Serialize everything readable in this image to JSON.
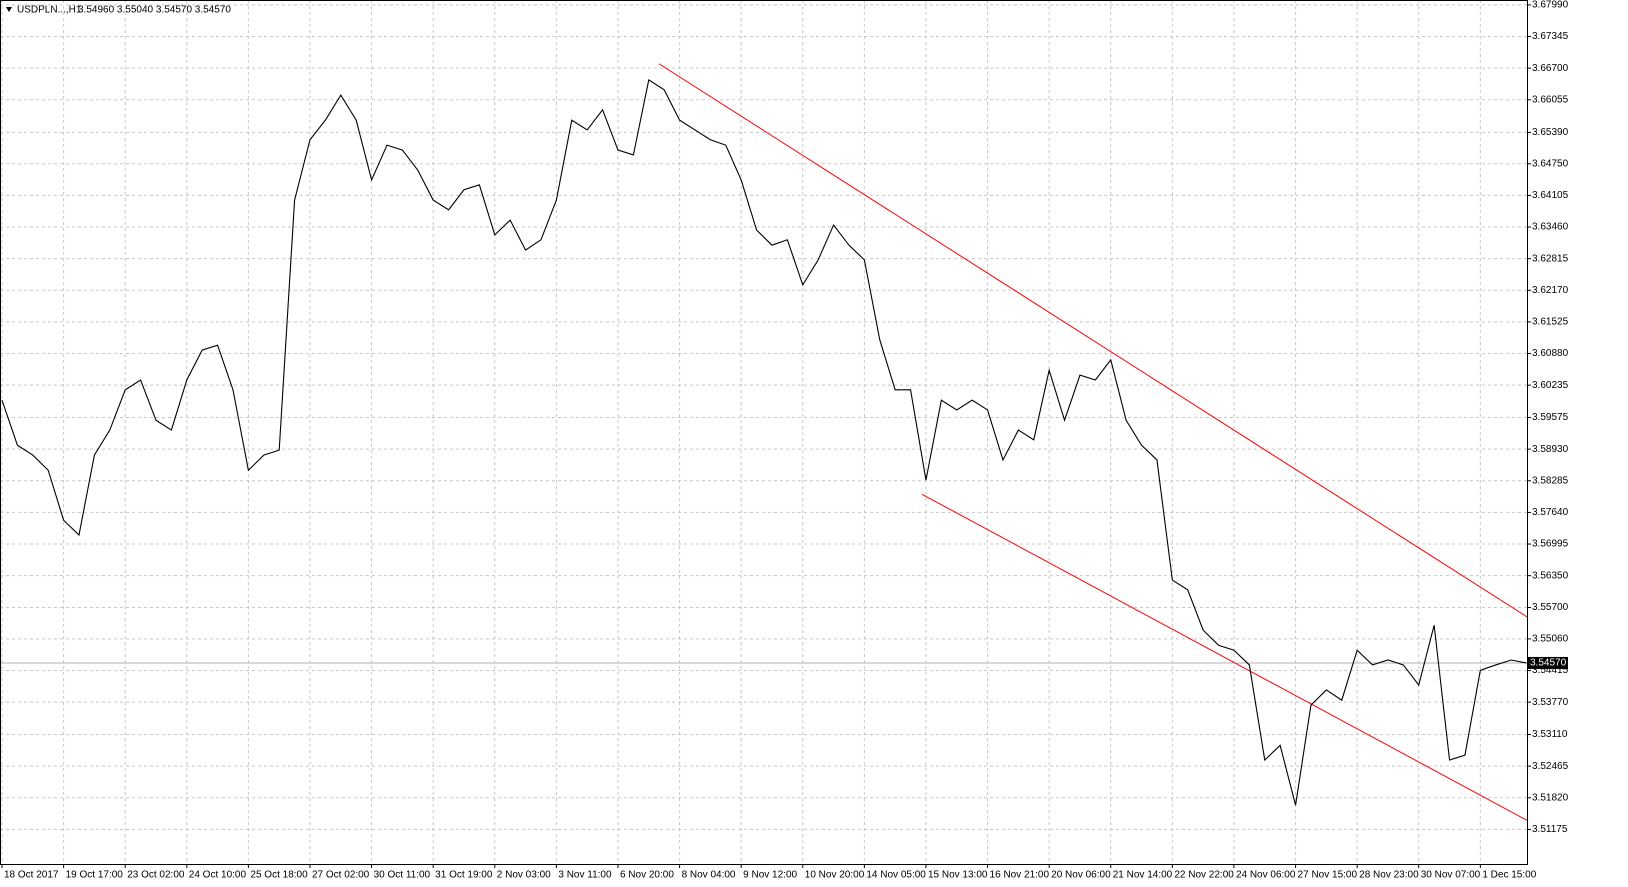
{
  "chart_data": {
    "type": "line",
    "title": "USDPLN...,H1",
    "ohlc": "3.54960 3.55040 3.54570 3.54570",
    "series": [
      {
        "name": "USDPLN",
        "color": "#000000",
        "values": [
          3.5993,
          3.5901,
          3.5881,
          3.585,
          3.5748,
          3.5718,
          3.5881,
          3.5932,
          3.6014,
          3.6034,
          3.5952,
          3.5932,
          3.6034,
          3.6095,
          3.6105,
          3.6014,
          3.585,
          3.5881,
          3.5891,
          3.6401,
          3.6524,
          3.6564,
          3.6615,
          3.6564,
          3.6442,
          3.6513,
          3.6503,
          3.6462,
          3.6401,
          3.6381,
          3.6422,
          3.6432,
          3.633,
          3.636,
          3.6299,
          3.632,
          3.6401,
          3.6564,
          3.6544,
          3.6585,
          3.6503,
          3.6493,
          3.6646,
          3.6626,
          3.6564,
          3.6544,
          3.6524,
          3.6513,
          3.6442,
          3.634,
          3.6309,
          3.632,
          3.6228,
          3.6279,
          3.635,
          3.6309,
          3.6279,
          3.6116,
          3.6014,
          3.6014,
          3.583,
          3.5993,
          3.5973,
          3.5993,
          3.5973,
          3.5871,
          3.5932,
          3.5912,
          3.6054,
          3.5952,
          3.6044,
          3.6034,
          3.6075,
          3.5952,
          3.5901,
          3.5871,
          3.5626,
          3.5606,
          3.5524,
          3.5493,
          3.5483,
          3.5453,
          3.5259,
          3.5289,
          3.5167,
          3.5371,
          3.5402,
          3.5381,
          3.5483,
          3.5453,
          3.5463,
          3.5453,
          3.5412,
          3.5534,
          3.5259,
          3.5269,
          3.5442,
          3.5453,
          3.5463,
          3.5457
        ]
      }
    ],
    "trendlines": [
      {
        "color": "#ff0000",
        "x": [
          42.66,
          99.03
        ],
        "y": [
          3.6679,
          3.5551
        ]
      },
      {
        "color": "#ff0000",
        "x": [
          59.74,
          99.03
        ],
        "y": [
          3.5801,
          3.5136
        ]
      }
    ],
    "last_price": {
      "value": 3.5457,
      "label": "3.54570"
    },
    "xlim": [
      -0.13,
      99.03
    ],
    "xticks": [
      {
        "value": 0,
        "label": "18 Oct 2017"
      },
      {
        "value": 4,
        "label": "19 Oct 17:00"
      },
      {
        "value": 8,
        "label": "23 Oct 02:00"
      },
      {
        "value": 12,
        "label": "24 Oct 10:00"
      },
      {
        "value": 16,
        "label": "25 Oct 18:00"
      },
      {
        "value": 20,
        "label": "27 Oct 02:00"
      },
      {
        "value": 24,
        "label": "30 Oct 11:00"
      },
      {
        "value": 28,
        "label": "31 Oct 19:00"
      },
      {
        "value": 32,
        "label": "2 Nov 03:00"
      },
      {
        "value": 36,
        "label": "3 Nov 11:00"
      },
      {
        "value": 40,
        "label": "6 Nov 20:00"
      },
      {
        "value": 44,
        "label": "8 Nov 04:00"
      },
      {
        "value": 48,
        "label": "9 Nov 12:00"
      },
      {
        "value": 52,
        "label": "10 Nov 20:00"
      },
      {
        "value": 56,
        "label": "14 Nov 05:00"
      },
      {
        "value": 60,
        "label": "15 Nov 13:00"
      },
      {
        "value": 64,
        "label": "16 Nov 21:00"
      },
      {
        "value": 68,
        "label": "20 Nov 06:00"
      },
      {
        "value": 72,
        "label": "21 Nov 14:00"
      },
      {
        "value": 76,
        "label": "22 Nov 22:00"
      },
      {
        "value": 80,
        "label": "24 Nov 06:00"
      },
      {
        "value": 84,
        "label": "27 Nov 15:00"
      },
      {
        "value": 88,
        "label": "28 Nov 23:00"
      },
      {
        "value": 92,
        "label": "30 Nov 07:00"
      },
      {
        "value": 96,
        "label": "1 Dec 15:00"
      }
    ],
    "ylim": [
      3.5047,
      3.6809
    ],
    "yticks": [
      {
        "value": 3.6799,
        "label": "3.67990"
      },
      3.67345,
      {
        "value": 3.667,
        "label": "3.66700"
      },
      3.66055,
      {
        "value": 3.6539,
        "label": "3.65390"
      },
      {
        "value": 3.6475,
        "label": "3.64750"
      },
      3.64105,
      {
        "value": 3.6346,
        "label": "3.63460"
      },
      3.62815,
      {
        "value": 3.6217,
        "label": "3.62170"
      },
      3.61525,
      {
        "value": 3.6088,
        "label": "3.60880"
      },
      3.60235,
      3.59575,
      {
        "value": 3.5893,
        "label": "3.58930"
      },
      3.58285,
      {
        "value": 3.5764,
        "label": "3.57640"
      },
      3.56995,
      {
        "value": 3.5635,
        "label": "3.56350"
      },
      {
        "value": 3.557,
        "label": "3.55700"
      },
      {
        "value": 3.5506,
        "label": "3.55060"
      },
      3.54415,
      {
        "value": 3.5377,
        "label": "3.53770"
      },
      {
        "value": 3.5311,
        "label": "3.53110"
      },
      3.52465,
      {
        "value": 3.5182,
        "label": "3.51820"
      },
      3.51175
    ],
    "grid": true
  }
}
